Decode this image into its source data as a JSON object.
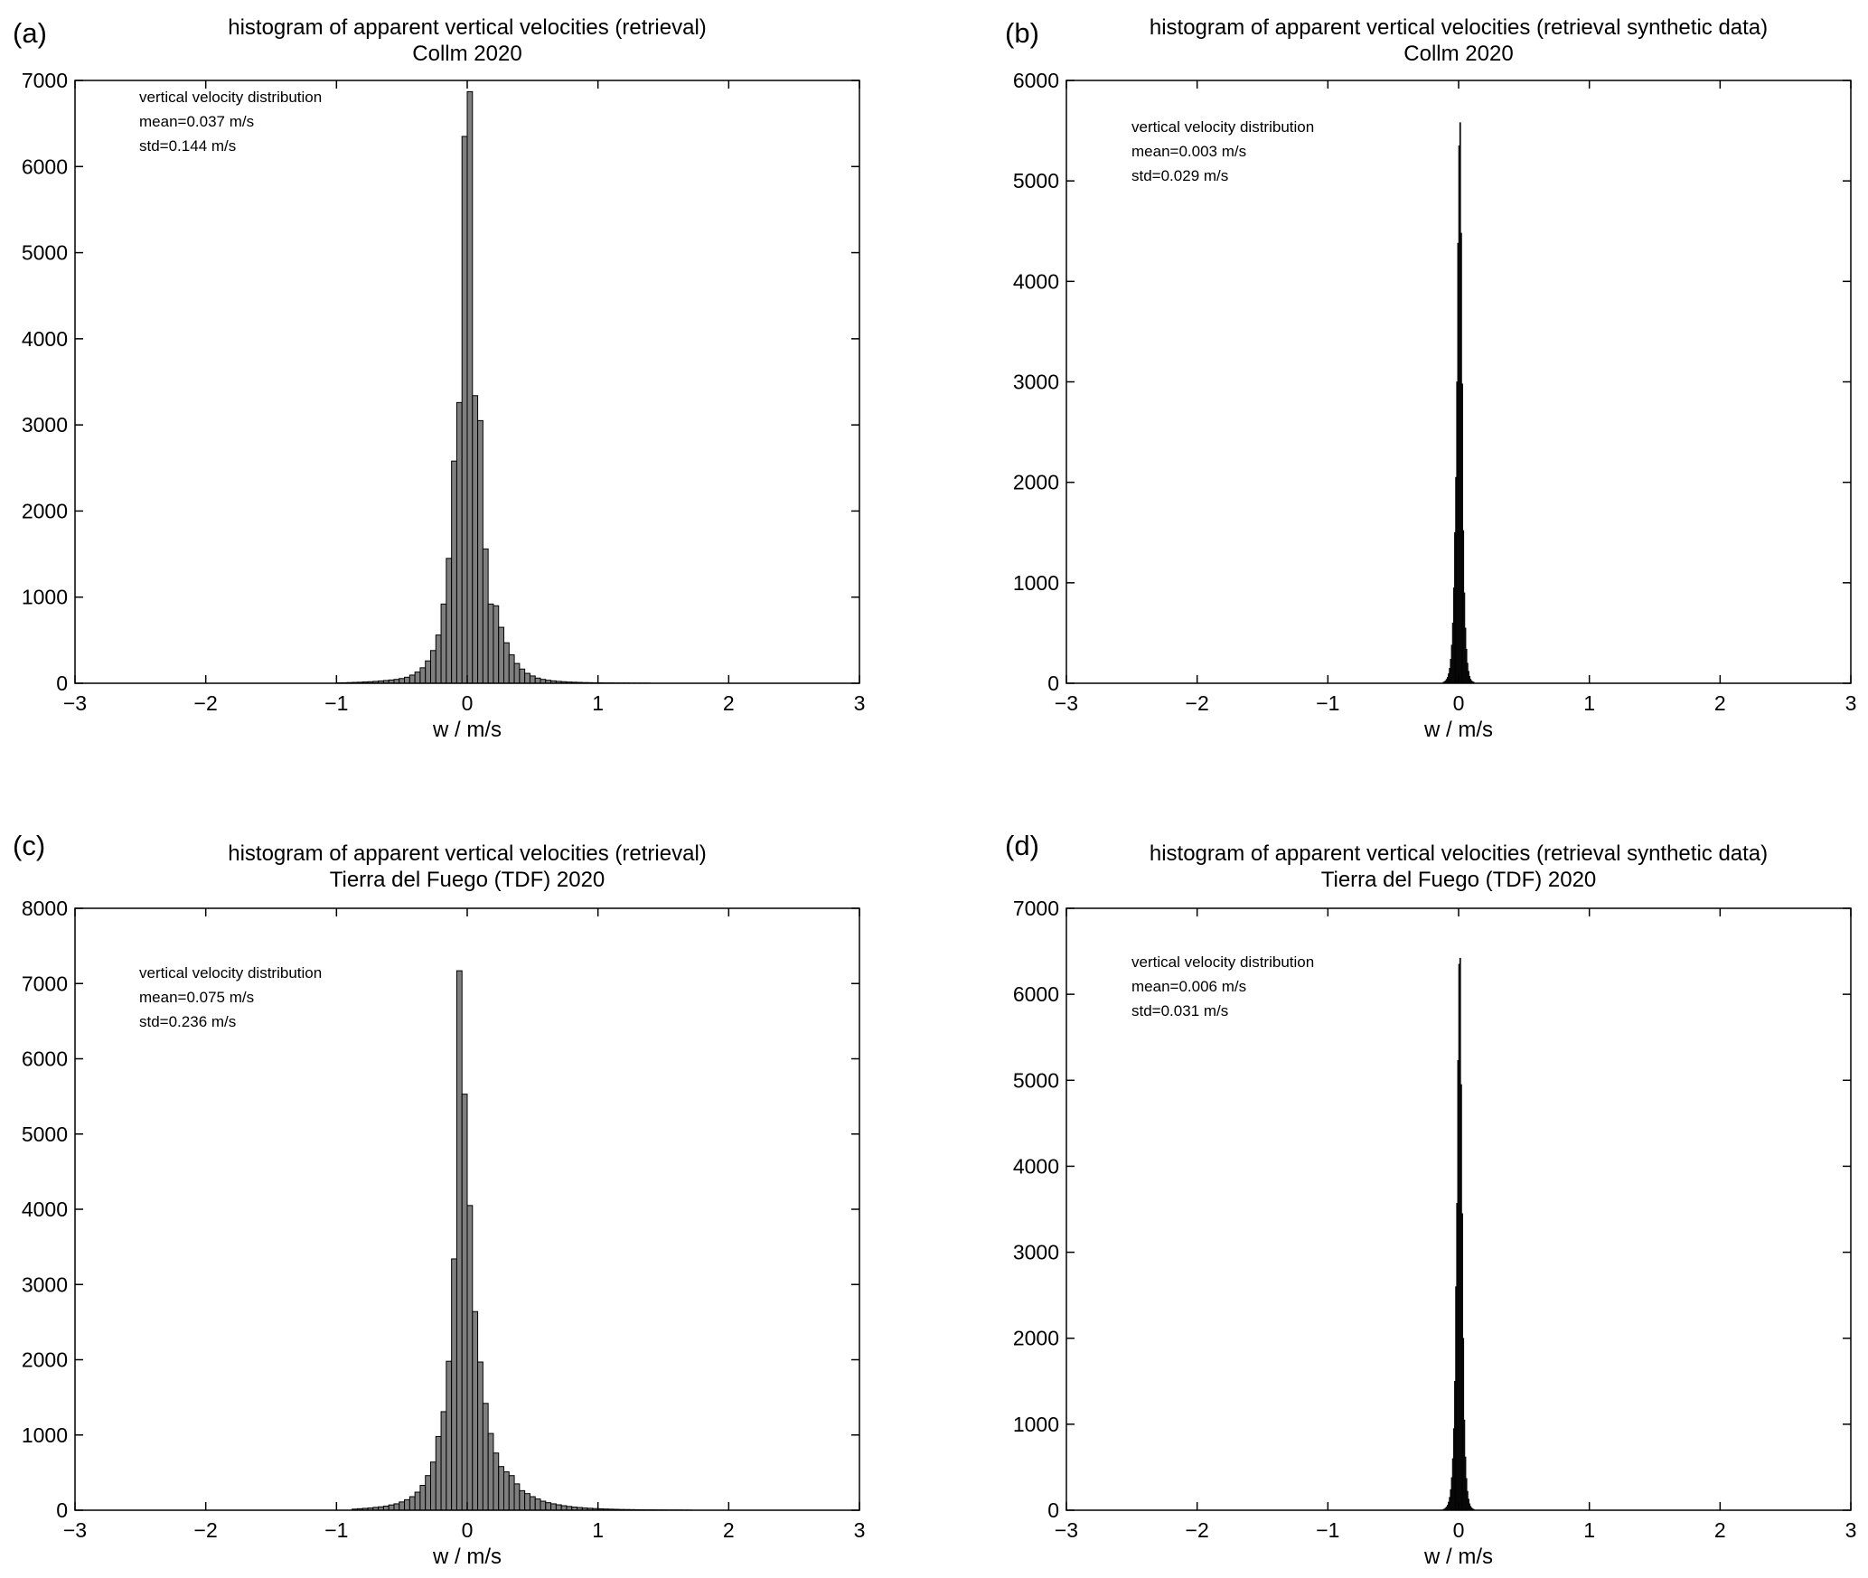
{
  "figure": {
    "panels": [
      {
        "label": "(a)",
        "title": "histogram of apparent vertical velocities (retrieval)",
        "subtitle": "Collm 2020",
        "xlabel": "w / m/s",
        "stats": [
          "vertical velocity distribution",
          "mean=0.037 m/s",
          "std=0.144 m/s"
        ]
      },
      {
        "label": "(b)",
        "title": "histogram of apparent vertical velocities (retrieval synthetic data)",
        "subtitle": "Collm 2020",
        "xlabel": "w / m/s",
        "stats": [
          "vertical velocity distribution",
          "mean=0.003 m/s",
          "std=0.029 m/s"
        ]
      },
      {
        "label": "(c)",
        "title": "histogram of apparent vertical velocities (retrieval)",
        "subtitle": "Tierra del Fuego (TDF) 2020",
        "xlabel": "w / m/s",
        "stats": [
          "vertical velocity distribution",
          "mean=0.075 m/s",
          "std=0.236 m/s"
        ]
      },
      {
        "label": "(d)",
        "title": "histogram of apparent vertical velocities (retrieval synthetic data)",
        "subtitle": "Tierra del Fuego (TDF) 2020",
        "xlabel": "w / m/s",
        "stats": [
          "vertical velocity distribution",
          "mean=0.006 m/s",
          "std=0.031 m/s"
        ]
      }
    ]
  },
  "chart_data": [
    {
      "type": "bar",
      "title": "histogram of apparent vertical velocities (retrieval)",
      "subtitle": "Collm 2020",
      "xlabel": "w / m/s",
      "ylabel": "",
      "xlim": [
        -3,
        3
      ],
      "ylim": [
        0,
        7000
      ],
      "xticks": [
        -3,
        -2,
        -1,
        0,
        1,
        2,
        3
      ],
      "yticks": [
        0,
        1000,
        2000,
        3000,
        4000,
        5000,
        6000,
        7000
      ],
      "bar_color": "#7f7f7f",
      "bin_width": 0.04,
      "x": [
        -0.98,
        -0.94,
        -0.9,
        -0.86,
        -0.82,
        -0.78,
        -0.74,
        -0.7,
        -0.66,
        -0.62,
        -0.58,
        -0.54,
        -0.5,
        -0.46,
        -0.42,
        -0.38,
        -0.34,
        -0.3,
        -0.26,
        -0.22,
        -0.18,
        -0.14,
        -0.1,
        -0.06,
        -0.02,
        0.02,
        0.06,
        0.1,
        0.14,
        0.18,
        0.22,
        0.26,
        0.3,
        0.34,
        0.38,
        0.42,
        0.46,
        0.5,
        0.54,
        0.58,
        0.62,
        0.66,
        0.7,
        0.74,
        0.78,
        0.82,
        0.86,
        0.9,
        0.94,
        0.98,
        1.02,
        1.06,
        1.1,
        1.14,
        1.18,
        1.22,
        1.26,
        1.3,
        1.34,
        1.38
      ],
      "values": [
        5,
        6,
        8,
        10,
        12,
        15,
        18,
        22,
        27,
        32,
        38,
        45,
        55,
        70,
        95,
        130,
        180,
        260,
        380,
        560,
        920,
        1450,
        2580,
        3260,
        6350,
        6870,
        3340,
        3050,
        1560,
        920,
        900,
        650,
        470,
        330,
        230,
        165,
        115,
        85,
        60,
        45,
        35,
        28,
        22,
        18,
        14,
        12,
        10,
        8,
        7,
        6,
        5,
        4,
        4,
        3,
        3,
        3,
        2,
        2,
        2,
        2
      ],
      "annotation": [
        "vertical velocity distribution",
        "mean=0.037 m/s",
        "std=0.144 m/s"
      ]
    },
    {
      "type": "bar",
      "title": "histogram of apparent vertical velocities (retrieval synthetic data)",
      "subtitle": "Collm 2020",
      "xlabel": "w / m/s",
      "ylabel": "",
      "xlim": [
        -3,
        3
      ],
      "ylim": [
        0,
        6000
      ],
      "xticks": [
        -3,
        -2,
        -1,
        0,
        1,
        2,
        3
      ],
      "yticks": [
        0,
        1000,
        2000,
        3000,
        4000,
        5000,
        6000
      ],
      "bar_color": "#111111",
      "bin_width": 0.008,
      "x": [
        -0.116,
        -0.108,
        -0.1,
        -0.092,
        -0.084,
        -0.076,
        -0.068,
        -0.06,
        -0.052,
        -0.044,
        -0.036,
        -0.028,
        -0.02,
        -0.012,
        -0.004,
        0.004,
        0.012,
        0.02,
        0.028,
        0.036,
        0.044,
        0.052,
        0.06,
        0.068,
        0.076,
        0.084,
        0.092,
        0.1,
        0.108,
        0.116
      ],
      "values": [
        10,
        15,
        25,
        40,
        60,
        95,
        150,
        240,
        380,
        600,
        950,
        1500,
        2050,
        3000,
        4380,
        5350,
        5580,
        4480,
        2980,
        1520,
        900,
        550,
        340,
        200,
        120,
        70,
        40,
        25,
        15,
        10
      ],
      "annotation": [
        "vertical velocity distribution",
        "mean=0.003 m/s",
        "std=0.029 m/s"
      ]
    },
    {
      "type": "bar",
      "title": "histogram of apparent vertical velocities (retrieval)",
      "subtitle": "Tierra del Fuego (TDF) 2020",
      "xlabel": "w / m/s",
      "ylabel": "",
      "xlim": [
        -3,
        3
      ],
      "ylim": [
        0,
        8000
      ],
      "xticks": [
        -3,
        -2,
        -1,
        0,
        1,
        2,
        3
      ],
      "yticks": [
        0,
        1000,
        2000,
        3000,
        4000,
        5000,
        6000,
        7000,
        8000
      ],
      "bar_color": "#7f7f7f",
      "bin_width": 0.04,
      "x": [
        -0.86,
        -0.82,
        -0.78,
        -0.74,
        -0.7,
        -0.66,
        -0.62,
        -0.58,
        -0.54,
        -0.5,
        -0.46,
        -0.42,
        -0.38,
        -0.34,
        -0.3,
        -0.26,
        -0.22,
        -0.18,
        -0.14,
        -0.1,
        -0.06,
        -0.02,
        0.02,
        0.06,
        0.1,
        0.14,
        0.18,
        0.22,
        0.26,
        0.3,
        0.34,
        0.38,
        0.42,
        0.46,
        0.5,
        0.54,
        0.58,
        0.62,
        0.66,
        0.7,
        0.74,
        0.78,
        0.82,
        0.86,
        0.9,
        0.94,
        0.98,
        1.02,
        1.06,
        1.1,
        1.14,
        1.18,
        1.22,
        1.26,
        1.3,
        1.34,
        1.38,
        1.42,
        1.46,
        1.5,
        1.54,
        1.58,
        1.62,
        1.66,
        1.7
      ],
      "values": [
        15,
        20,
        25,
        30,
        38,
        45,
        55,
        70,
        85,
        110,
        140,
        180,
        240,
        330,
        460,
        640,
        980,
        1310,
        1980,
        3340,
        7170,
        5530,
        4050,
        2640,
        1970,
        1420,
        1020,
        760,
        580,
        510,
        460,
        350,
        260,
        220,
        180,
        150,
        120,
        100,
        85,
        72,
        60,
        50,
        42,
        36,
        30,
        26,
        22,
        19,
        16,
        14,
        12,
        10,
        9,
        8,
        7,
        6,
        5,
        5,
        4,
        4,
        3,
        3,
        3,
        2,
        2
      ],
      "annotation": [
        "vertical velocity distribution",
        "mean=0.075 m/s",
        "std=0.236 m/s"
      ]
    },
    {
      "type": "bar",
      "title": "histogram of apparent vertical velocities (retrieval synthetic data)",
      "subtitle": "Tierra del Fuego (TDF) 2020",
      "xlabel": "w / m/s",
      "ylabel": "",
      "xlim": [
        -3,
        3
      ],
      "ylim": [
        0,
        7000
      ],
      "xticks": [
        -3,
        -2,
        -1,
        0,
        1,
        2,
        3
      ],
      "yticks": [
        0,
        1000,
        2000,
        3000,
        4000,
        5000,
        6000,
        7000
      ],
      "bar_color": "#111111",
      "bin_width": 0.008,
      "x": [
        -0.116,
        -0.108,
        -0.1,
        -0.092,
        -0.084,
        -0.076,
        -0.068,
        -0.06,
        -0.052,
        -0.044,
        -0.036,
        -0.028,
        -0.02,
        -0.012,
        -0.004,
        0.004,
        0.012,
        0.02,
        0.028,
        0.036,
        0.044,
        0.052,
        0.06,
        0.068,
        0.076,
        0.084,
        0.092,
        0.1,
        0.108,
        0.116
      ],
      "values": [
        10,
        15,
        25,
        40,
        60,
        95,
        150,
        240,
        380,
        600,
        950,
        1500,
        2600,
        3570,
        5230,
        6350,
        6420,
        4950,
        3450,
        2000,
        1050,
        620,
        370,
        220,
        130,
        75,
        45,
        28,
        16,
        10
      ],
      "annotation": [
        "vertical velocity distribution",
        "mean=0.006 m/s",
        "std=0.031 m/s"
      ]
    }
  ]
}
